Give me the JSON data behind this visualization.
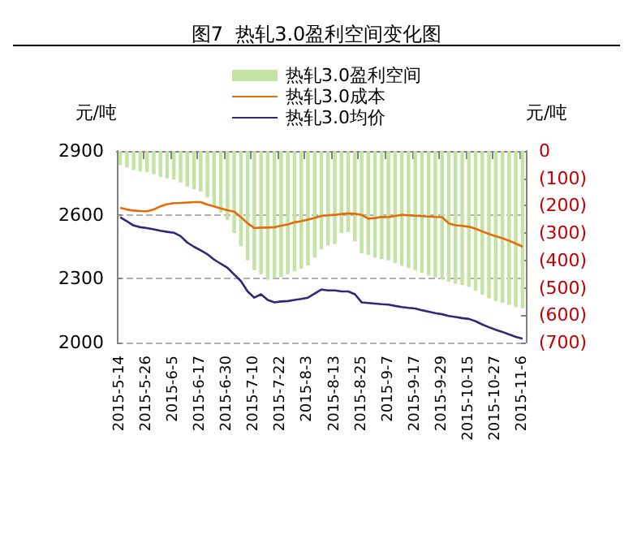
{
  "chart_data": {
    "type": "bar",
    "title": "图7  热轧3.0盈利空间变化图",
    "ylabel": "元/吨",
    "y2label": "元/吨",
    "categories": [
      "2015-5-14",
      null,
      null,
      null,
      "2015-5-26",
      null,
      null,
      null,
      "2015-6-5",
      null,
      null,
      null,
      "2015-6-17",
      null,
      null,
      null,
      "2015-6-30",
      null,
      null,
      null,
      "2015-7-10",
      null,
      null,
      null,
      "2015-7-22",
      null,
      null,
      null,
      "2015-8-3",
      null,
      null,
      null,
      "2015-8-13",
      null,
      null,
      null,
      "2015-8-25",
      null,
      null,
      null,
      "2015-9-7",
      null,
      null,
      null,
      "2015-9-17",
      null,
      null,
      null,
      "2015-9-29",
      null,
      null,
      null,
      "2015-10-15",
      null,
      null,
      null,
      "2015-10-27",
      null,
      null,
      null,
      "2015-11-6"
    ],
    "series": [
      {
        "name": "热轧3.0盈利空间",
        "axis": "y2",
        "color": "#c4e3a4",
        "values": [
          -52,
          -60,
          -70,
          -75,
          -78,
          -85,
          -95,
          -100,
          -104,
          -115,
          -130,
          -140,
          -148,
          -170,
          -200,
          -225,
          -252,
          -300,
          -348,
          -400,
          -435,
          -450,
          -470,
          -465,
          -461,
          -450,
          -440,
          -430,
          -418,
          -390,
          -360,
          -345,
          -340,
          -300,
          -296,
          -330,
          -374,
          -380,
          -390,
          -395,
          -400,
          -410,
          -420,
          -428,
          -435,
          -445,
          -455,
          -462,
          -470,
          -478,
          -485,
          -490,
          -496,
          -510,
          -525,
          -538,
          -548,
          -555,
          -562,
          -570,
          -575
        ]
      },
      {
        "name": "热轧3.0成本",
        "type": "line",
        "color": "#e46c0a",
        "values": [
          2633,
          2625,
          2620,
          2618,
          2617,
          2625,
          2640,
          2650,
          2655,
          2656,
          2658,
          2660,
          2660,
          2648,
          2640,
          2630,
          2622,
          2615,
          2589,
          2560,
          2538,
          2540,
          2540,
          2542,
          2549,
          2555,
          2565,
          2570,
          2578,
          2585,
          2595,
          2598,
          2600,
          2604,
          2607,
          2605,
          2600,
          2582,
          2585,
          2590,
          2589,
          2595,
          2600,
          2598,
          2596,
          2594,
          2592,
          2590,
          2589,
          2560,
          2551,
          2548,
          2544,
          2535,
          2522,
          2510,
          2500,
          2490,
          2478,
          2465,
          2451
        ]
      },
      {
        "name": "热轧3.0均价",
        "type": "line",
        "color": "#2e2a7a",
        "values": [
          2589,
          2570,
          2550,
          2542,
          2538,
          2532,
          2525,
          2520,
          2516,
          2500,
          2470,
          2450,
          2433,
          2415,
          2390,
          2370,
          2351,
          2320,
          2289,
          2240,
          2211,
          2227,
          2200,
          2189,
          2193,
          2195,
          2200,
          2205,
          2211,
          2230,
          2249,
          2245,
          2245,
          2240,
          2240,
          2227,
          2189,
          2186,
          2183,
          2180,
          2178,
          2172,
          2167,
          2163,
          2160,
          2152,
          2145,
          2138,
          2133,
          2125,
          2120,
          2115,
          2111,
          2100,
          2085,
          2072,
          2060,
          2050,
          2038,
          2027,
          2018
        ]
      }
    ],
    "ylim": [
      2000,
      2900
    ],
    "yticks": [
      2000,
      2300,
      2600,
      2900
    ],
    "y2lim": [
      -700,
      0
    ],
    "y2ticks": [
      {
        "value": -700,
        "label": "(700)"
      },
      {
        "value": -600,
        "label": "(600)"
      },
      {
        "value": -500,
        "label": "(500)"
      },
      {
        "value": -400,
        "label": "(400)"
      },
      {
        "value": -300,
        "label": "(300)"
      },
      {
        "value": -200,
        "label": "(200)"
      },
      {
        "value": -100,
        "label": "(100)"
      },
      0
    ],
    "grid": "y",
    "legend": "top",
    "marker": "none",
    "line_style": "solid"
  }
}
